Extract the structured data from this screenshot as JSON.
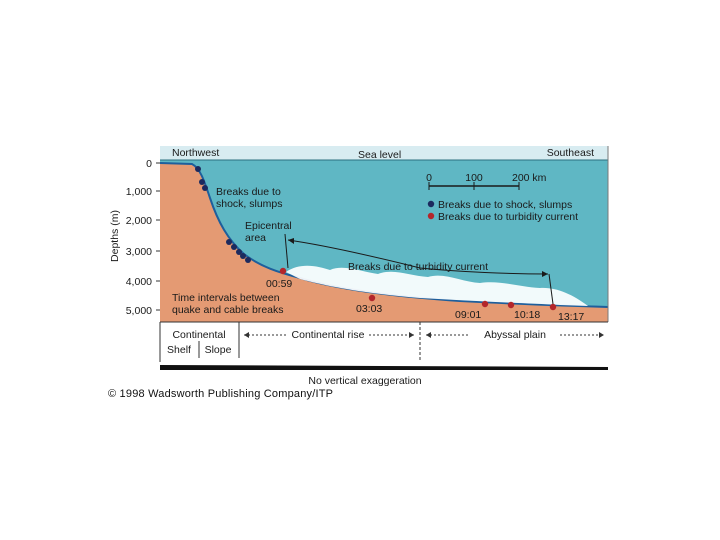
{
  "diagram": {
    "direction_left": "Northwest",
    "direction_right": "Southeast",
    "sea_level_label": "Sea level",
    "y_axis_label": "Depths (m)",
    "y_ticks": [
      "0",
      "1,000",
      "2,000",
      "3,000",
      "4,000",
      "5,000"
    ],
    "scale_bar": {
      "ticks": [
        "0",
        "100",
        "200 km"
      ]
    },
    "legend": [
      {
        "label": "Breaks due to shock, slumps",
        "color": "#1c2a5e"
      },
      {
        "label": "Breaks due to turbidity current",
        "color": "#b3262b"
      }
    ],
    "annotations": {
      "shock_line1": "Breaks due to",
      "shock_line2": "shock, slumps",
      "epicentral_line1": "Epicentral",
      "epicentral_line2": "area",
      "turbidity": "Breaks due to turbidity current",
      "intervals_line1": "Time intervals between",
      "intervals_line2": "quake and cable breaks"
    },
    "times": [
      "00:59",
      "03:03",
      "09:01",
      "10:18",
      "13:17"
    ],
    "zones": {
      "continental_top": "Continental",
      "shelf": "Shelf",
      "slope": "Slope",
      "rise": "Continental rise",
      "abyssal": "Abyssal plain"
    },
    "exaggeration_note": "No vertical exaggeration",
    "colors": {
      "sea": "#5fb7c4",
      "land": "#e49a73",
      "panel": "#d8ecf1",
      "current": "#ffffff"
    }
  },
  "credit": "© 1998 Wadsworth Publishing Company/ITP"
}
